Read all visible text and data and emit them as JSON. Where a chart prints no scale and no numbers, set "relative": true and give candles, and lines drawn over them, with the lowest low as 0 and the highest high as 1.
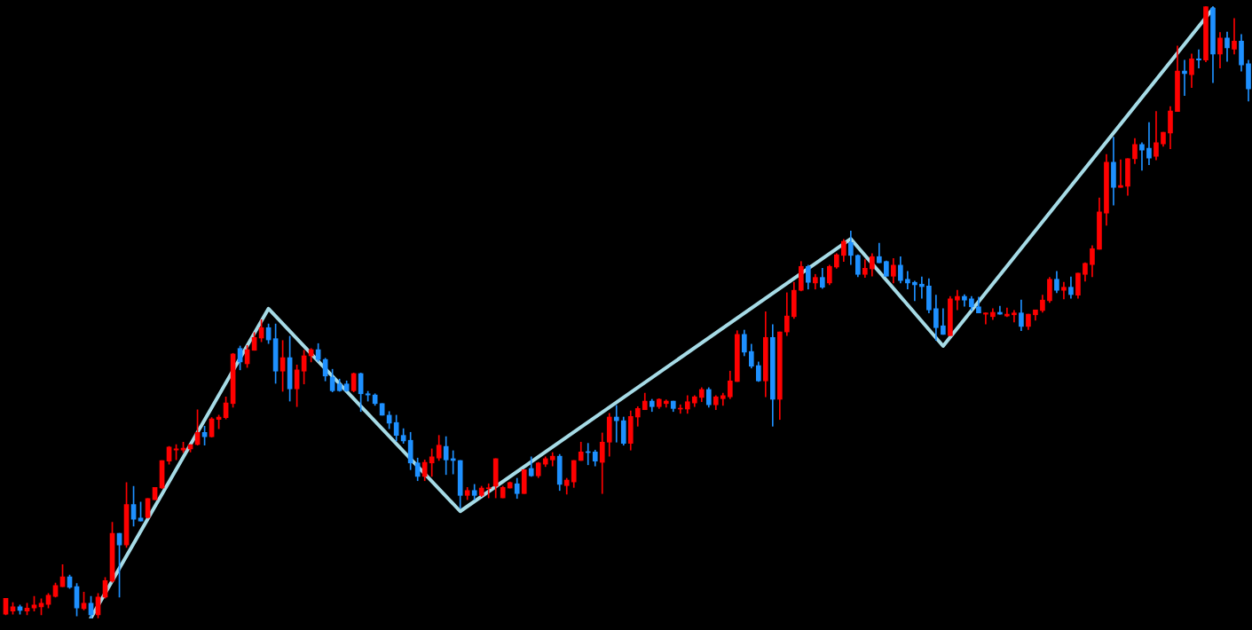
{
  "chart_data": {
    "type": "candlestick",
    "relative": true,
    "categories": [
      null,
      null,
      null,
      null,
      null,
      null,
      null,
      null,
      null,
      null,
      null,
      null,
      null,
      null,
      null,
      null,
      null,
      null,
      null,
      null,
      null,
      null,
      null,
      null,
      null,
      null,
      null,
      null,
      null,
      null,
      null,
      null,
      null,
      null,
      null,
      null,
      null,
      null,
      null,
      null,
      null,
      null,
      null,
      null,
      null,
      null,
      null,
      null,
      null,
      null,
      null,
      null,
      null,
      null,
      null,
      null,
      null,
      null,
      null,
      null,
      null,
      null,
      null,
      null,
      null,
      null,
      null,
      null,
      null,
      null,
      null,
      null,
      null,
      null,
      null,
      null,
      null,
      null,
      null,
      null,
      null,
      null,
      null,
      null,
      null,
      null,
      null,
      null,
      null,
      null,
      null,
      null,
      null,
      null,
      null,
      null,
      null,
      null,
      null,
      null,
      null,
      null,
      null,
      null,
      null,
      null,
      null,
      null,
      null,
      null,
      null,
      null,
      null,
      null,
      null,
      null,
      null,
      null,
      null,
      null,
      null,
      null,
      null,
      null,
      null,
      null,
      null,
      null,
      null,
      null,
      null,
      null,
      null,
      null,
      null,
      null,
      null,
      null,
      null,
      null,
      null,
      null,
      null,
      null,
      null,
      null,
      null,
      null,
      null,
      null,
      null,
      null,
      null,
      null,
      null,
      null,
      null,
      null,
      null,
      null,
      null,
      null,
      null,
      null,
      null,
      null,
      null,
      null,
      null,
      null,
      null,
      null,
      null,
      null,
      null,
      null
    ],
    "ohlc": [
      [
        0.007,
        0.033,
        0.006,
        0.033
      ],
      [
        0.012,
        0.026,
        0.007,
        0.019
      ],
      [
        0.019,
        0.022,
        0.007,
        0.013
      ],
      [
        0.012,
        0.025,
        0.006,
        0.017
      ],
      [
        0.017,
        0.036,
        0.012,
        0.022
      ],
      [
        0.019,
        0.032,
        0.006,
        0.025
      ],
      [
        0.023,
        0.041,
        0.017,
        0.038
      ],
      [
        0.036,
        0.058,
        0.035,
        0.054
      ],
      [
        0.052,
        0.088,
        0.052,
        0.068
      ],
      [
        0.068,
        0.071,
        0.049,
        0.051
      ],
      [
        0.052,
        0.057,
        0.004,
        0.017
      ],
      [
        0.016,
        0.043,
        0.014,
        0.025
      ],
      [
        0.025,
        0.036,
        0,
        0.006
      ],
      [
        0.006,
        0.041,
        0.001,
        0.035
      ],
      [
        0.035,
        0.067,
        0.033,
        0.062
      ],
      [
        0.061,
        0.157,
        0.059,
        0.139
      ],
      [
        0.139,
        0.139,
        0.035,
        0.12
      ],
      [
        0.12,
        0.222,
        0.116,
        0.186
      ],
      [
        0.186,
        0.216,
        0.151,
        0.162
      ],
      [
        0.164,
        0.19,
        0.159,
        0.159
      ],
      [
        0.165,
        0.196,
        0.164,
        0.196
      ],
      [
        0.194,
        0.214,
        0.194,
        0.214
      ],
      [
        0.213,
        0.258,
        0.212,
        0.258
      ],
      [
        0.257,
        0.281,
        0.252,
        0.28
      ],
      [
        0.275,
        0.284,
        0.259,
        0.277
      ],
      [
        0.275,
        0.288,
        0.271,
        0.278
      ],
      [
        0.277,
        0.284,
        0.272,
        0.284
      ],
      [
        0.284,
        0.341,
        0.283,
        0.304
      ],
      [
        0.304,
        0.314,
        0.283,
        0.297
      ],
      [
        0.297,
        0.328,
        0.296,
        0.326
      ],
      [
        0.325,
        0.332,
        0.31,
        0.329
      ],
      [
        0.328,
        0.362,
        0.326,
        0.352
      ],
      [
        0.351,
        0.433,
        0.345,
        0.432
      ],
      [
        0.441,
        0.445,
        0.406,
        0.419
      ],
      [
        0.416,
        0.446,
        0.41,
        0.439
      ],
      [
        0.438,
        0.467,
        0.438,
        0.459
      ],
      [
        0.458,
        0.488,
        0.452,
        0.475
      ],
      [
        0.475,
        0.481,
        0.449,
        0.455
      ],
      [
        0.457,
        0.481,
        0.384,
        0.404
      ],
      [
        0.404,
        0.454,
        0.371,
        0.426
      ],
      [
        0.426,
        0.461,
        0.355,
        0.375
      ],
      [
        0.375,
        0.414,
        0.346,
        0.406
      ],
      [
        0.404,
        0.438,
        0.383,
        0.429
      ],
      [
        0.429,
        0.441,
        0.419,
        0.439
      ],
      [
        0.439,
        0.449,
        0.42,
        0.423
      ],
      [
        0.423,
        0.425,
        0.388,
        0.396
      ],
      [
        0.394,
        0.407,
        0.37,
        0.372
      ],
      [
        0.383,
        0.391,
        0.371,
        0.372
      ],
      [
        0.383,
        0.388,
        0.371,
        0.372
      ],
      [
        0.372,
        0.401,
        0.37,
        0.4
      ],
      [
        0.4,
        0.401,
        0.338,
        0.367
      ],
      [
        0.367,
        0.371,
        0.355,
        0.365
      ],
      [
        0.365,
        0.367,
        0.348,
        0.351
      ],
      [
        0.351,
        0.351,
        0.332,
        0.332
      ],
      [
        0.332,
        0.338,
        0.31,
        0.319
      ],
      [
        0.32,
        0.332,
        0.29,
        0.299
      ],
      [
        0.299,
        0.31,
        0.286,
        0.29
      ],
      [
        0.291,
        0.304,
        0.243,
        0.254
      ],
      [
        0.254,
        0.262,
        0.225,
        0.232
      ],
      [
        0.232,
        0.259,
        0.225,
        0.255
      ],
      [
        0.254,
        0.277,
        0.232,
        0.264
      ],
      [
        0.262,
        0.299,
        0.258,
        0.283
      ],
      [
        0.281,
        0.297,
        0.235,
        0.259
      ],
      [
        0.261,
        0.274,
        0.236,
        0.258
      ],
      [
        0.258,
        0.258,
        0.18,
        0.201
      ],
      [
        0.201,
        0.214,
        0.194,
        0.209
      ],
      [
        0.209,
        0.219,
        0.194,
        0.201
      ],
      [
        0.201,
        0.216,
        0.199,
        0.213
      ],
      [
        0.212,
        0.22,
        0.197,
        0.213
      ],
      [
        0.216,
        0.261,
        0.197,
        0.261
      ],
      [
        0.197,
        0.216,
        0.197,
        0.214
      ],
      [
        0.213,
        0.223,
        0.213,
        0.222
      ],
      [
        0.22,
        0.229,
        0.196,
        0.204
      ],
      [
        0.204,
        0.243,
        0.204,
        0.243
      ],
      [
        0.245,
        0.264,
        0.232,
        0.233
      ],
      [
        0.233,
        0.255,
        0.23,
        0.254
      ],
      [
        0.252,
        0.264,
        0.248,
        0.261
      ],
      [
        0.259,
        0.271,
        0.249,
        0.265
      ],
      [
        0.265,
        0.268,
        0.209,
        0.219
      ],
      [
        0.217,
        0.229,
        0.203,
        0.226
      ],
      [
        0.223,
        0.258,
        0.214,
        0.258
      ],
      [
        0.258,
        0.288,
        0.258,
        0.272
      ],
      [
        0.272,
        0.286,
        0.251,
        0.271
      ],
      [
        0.272,
        0.275,
        0.249,
        0.257
      ],
      [
        0.255,
        0.303,
        0.204,
        0.288
      ],
      [
        0.288,
        0.335,
        0.265,
        0.329
      ],
      [
        0.329,
        0.348,
        0.288,
        0.323
      ],
      [
        0.323,
        0.329,
        0.283,
        0.286
      ],
      [
        0.286,
        0.339,
        0.275,
        0.33
      ],
      [
        0.329,
        0.346,
        0.314,
        0.343
      ],
      [
        0.341,
        0.368,
        0.341,
        0.355
      ],
      [
        0.355,
        0.358,
        0.338,
        0.346
      ],
      [
        0.346,
        0.359,
        0.343,
        0.358
      ],
      [
        0.351,
        0.357,
        0.345,
        0.355
      ],
      [
        0.355,
        0.355,
        0.338,
        0.343
      ],
      [
        0.342,
        0.349,
        0.335,
        0.343
      ],
      [
        0.342,
        0.364,
        0.335,
        0.354
      ],
      [
        0.352,
        0.364,
        0.346,
        0.362
      ],
      [
        0.361,
        0.377,
        0.354,
        0.374
      ],
      [
        0.374,
        0.377,
        0.345,
        0.349
      ],
      [
        0.349,
        0.364,
        0.341,
        0.362
      ],
      [
        0.359,
        0.368,
        0.348,
        0.364
      ],
      [
        0.362,
        0.404,
        0.359,
        0.388
      ],
      [
        0.387,
        0.47,
        0.387,
        0.464
      ],
      [
        0.464,
        0.471,
        0.429,
        0.435
      ],
      [
        0.436,
        0.448,
        0.409,
        0.412
      ],
      [
        0.413,
        0.419,
        0.387,
        0.388
      ],
      [
        0.388,
        0.501,
        0.362,
        0.459
      ],
      [
        0.459,
        0.48,
        0.314,
        0.358
      ],
      [
        0.358,
        0.468,
        0.325,
        0.468
      ],
      [
        0.468,
        0.532,
        0.462,
        0.494
      ],
      [
        0.493,
        0.549,
        0.49,
        0.536
      ],
      [
        0.536,
        0.583,
        0.535,
        0.575
      ],
      [
        0.575,
        0.577,
        0.538,
        0.549
      ],
      [
        0.548,
        0.562,
        0.538,
        0.557
      ],
      [
        0.557,
        0.572,
        0.539,
        0.541
      ],
      [
        0.548,
        0.577,
        0.545,
        0.575
      ],
      [
        0.574,
        0.596,
        0.572,
        0.594
      ],
      [
        0.593,
        0.619,
        0.583,
        0.616
      ],
      [
        0.614,
        0.633,
        0.578,
        0.593
      ],
      [
        0.593,
        0.594,
        0.558,
        0.562
      ],
      [
        0.562,
        0.586,
        0.557,
        0.572
      ],
      [
        0.571,
        0.596,
        0.559,
        0.591
      ],
      [
        0.591,
        0.613,
        0.581,
        0.581
      ],
      [
        0.583,
        0.584,
        0.559,
        0.559
      ],
      [
        0.559,
        0.588,
        0.548,
        0.577
      ],
      [
        0.577,
        0.591,
        0.548,
        0.552
      ],
      [
        0.554,
        0.567,
        0.538,
        0.548
      ],
      [
        0.549,
        0.551,
        0.519,
        0.545
      ],
      [
        0.546,
        0.558,
        0.523,
        0.542
      ],
      [
        0.543,
        0.555,
        0.499,
        0.504
      ],
      [
        0.506,
        0.528,
        0.454,
        0.475
      ],
      [
        0.478,
        0.506,
        0.464,
        0.464
      ],
      [
        0.462,
        0.526,
        0.462,
        0.522
      ],
      [
        0.52,
        0.536,
        0.504,
        0.526
      ],
      [
        0.526,
        0.529,
        0.51,
        0.52
      ],
      [
        0.522,
        0.526,
        0.503,
        0.509
      ],
      [
        0.509,
        0.525,
        0.499,
        0.499
      ],
      [
        0.497,
        0.499,
        0.481,
        0.499
      ],
      [
        0.493,
        0.506,
        0.488,
        0.5
      ],
      [
        0.5,
        0.51,
        0.497,
        0.497
      ],
      [
        0.494,
        0.507,
        0.493,
        0.497
      ],
      [
        0.496,
        0.503,
        0.484,
        0.499
      ],
      [
        0.499,
        0.52,
        0.47,
        0.477
      ],
      [
        0.477,
        0.497,
        0.472,
        0.497
      ],
      [
        0.496,
        0.504,
        0.487,
        0.504
      ],
      [
        0.503,
        0.528,
        0.5,
        0.52
      ],
      [
        0.519,
        0.557,
        0.516,
        0.554
      ],
      [
        0.554,
        0.567,
        0.532,
        0.536
      ],
      [
        0.536,
        0.549,
        0.522,
        0.541
      ],
      [
        0.541,
        0.558,
        0.523,
        0.529
      ],
      [
        0.528,
        0.564,
        0.523,
        0.564
      ],
      [
        0.562,
        0.581,
        0.551,
        0.58
      ],
      [
        0.578,
        0.609,
        0.558,
        0.604
      ],
      [
        0.603,
        0.687,
        0.603,
        0.664
      ],
      [
        0.662,
        0.758,
        0.642,
        0.745
      ],
      [
        0.745,
        0.786,
        0.675,
        0.704
      ],
      [
        0.704,
        0.749,
        0.704,
        0.707
      ],
      [
        0.706,
        0.751,
        0.691,
        0.751
      ],
      [
        0.751,
        0.784,
        0.743,
        0.774
      ],
      [
        0.774,
        0.777,
        0.732,
        0.765
      ],
      [
        0.768,
        0.81,
        0.741,
        0.752
      ],
      [
        0.755,
        0.828,
        0.749,
        0.777
      ],
      [
        0.775,
        0.794,
        0.771,
        0.794
      ],
      [
        0.793,
        0.836,
        0.767,
        0.829
      ],
      [
        0.828,
        0.935,
        0.828,
        0.894
      ],
      [
        0.894,
        0.912,
        0.854,
        0.89
      ],
      [
        0.888,
        0.922,
        0.867,
        0.914
      ],
      [
        0.914,
        0.929,
        0.899,
        0.912
      ],
      [
        0.912,
        1,
        0.909,
        0.999
      ],
      [
        0.997,
        1,
        0.875,
        0.922
      ],
      [
        0.922,
        0.957,
        0.899,
        0.948
      ],
      [
        0.948,
        0.958,
        0.91,
        0.932
      ],
      [
        0.93,
        0.98,
        0.922,
        0.943
      ],
      [
        0.943,
        0.954,
        0.894,
        0.904
      ],
      [
        0.906,
        0.912,
        0.845,
        0.865
      ]
    ],
    "colors": [
      "#ff0000",
      "#ff0000",
      "#1e90ff",
      "#ff0000",
      "#ff0000",
      "#ff0000",
      "#ff0000",
      "#ff0000",
      "#ff0000",
      "#1e90ff",
      "#1e90ff",
      "#ff0000",
      "#1e90ff",
      "#ff0000",
      "#ff0000",
      "#ff0000",
      "#1e90ff",
      "#ff0000",
      "#1e90ff",
      "#1e90ff",
      "#ff0000",
      "#ff0000",
      "#ff0000",
      "#ff0000",
      "#ff0000",
      "#ff0000",
      "#ff0000",
      "#ff0000",
      "#1e90ff",
      "#ff0000",
      "#ff0000",
      "#ff0000",
      "#ff0000",
      "#1e90ff",
      "#ff0000",
      "#ff0000",
      "#ff0000",
      "#1e90ff",
      "#1e90ff",
      "#ff0000",
      "#1e90ff",
      "#ff0000",
      "#ff0000",
      "#ff0000",
      "#1e90ff",
      "#1e90ff",
      "#1e90ff",
      "#1e90ff",
      "#1e90ff",
      "#ff0000",
      "#1e90ff",
      "#1e90ff",
      "#1e90ff",
      "#1e90ff",
      "#1e90ff",
      "#1e90ff",
      "#1e90ff",
      "#1e90ff",
      "#1e90ff",
      "#ff0000",
      "#ff0000",
      "#ff0000",
      "#1e90ff",
      "#1e90ff",
      "#1e90ff",
      "#ff0000",
      "#1e90ff",
      "#ff0000",
      "#ff0000",
      "#ff0000",
      "#ff0000",
      "#ff0000",
      "#1e90ff",
      "#ff0000",
      "#1e90ff",
      "#ff0000",
      "#ff0000",
      "#ff0000",
      "#1e90ff",
      "#ff0000",
      "#ff0000",
      "#ff0000",
      "#1e90ff",
      "#1e90ff",
      "#ff0000",
      "#ff0000",
      "#1e90ff",
      "#1e90ff",
      "#ff0000",
      "#ff0000",
      "#ff0000",
      "#1e90ff",
      "#ff0000",
      "#ff0000",
      "#1e90ff",
      "#ff0000",
      "#ff0000",
      "#ff0000",
      "#ff0000",
      "#1e90ff",
      "#ff0000",
      "#ff0000",
      "#ff0000",
      "#ff0000",
      "#1e90ff",
      "#1e90ff",
      "#1e90ff",
      "#ff0000",
      "#1e90ff",
      "#ff0000",
      "#ff0000",
      "#ff0000",
      "#ff0000",
      "#1e90ff",
      "#ff0000",
      "#1e90ff",
      "#ff0000",
      "#ff0000",
      "#ff0000",
      "#1e90ff",
      "#1e90ff",
      "#ff0000",
      "#ff0000",
      "#1e90ff",
      "#1e90ff",
      "#ff0000",
      "#1e90ff",
      "#1e90ff",
      "#1e90ff",
      "#1e90ff",
      "#1e90ff",
      "#1e90ff",
      "#1e90ff",
      "#ff0000",
      "#ff0000",
      "#1e90ff",
      "#1e90ff",
      "#1e90ff",
      "#ff0000",
      "#ff0000",
      "#1e90ff",
      "#ff0000",
      "#ff0000",
      "#1e90ff",
      "#ff0000",
      "#ff0000",
      "#ff0000",
      "#ff0000",
      "#1e90ff",
      "#ff0000",
      "#1e90ff",
      "#ff0000",
      "#ff0000",
      "#ff0000",
      "#ff0000",
      "#ff0000",
      "#1e90ff",
      "#ff0000",
      "#ff0000",
      "#ff0000",
      "#1e90ff",
      "#1e90ff",
      "#ff0000",
      "#ff0000",
      "#ff0000",
      "#ff0000",
      "#1e90ff",
      "#ff0000",
      "#1e90ff",
      "#ff0000",
      "#1e90ff",
      "#ff0000",
      "#1e90ff",
      "#ff0000",
      "#1e90ff",
      "#1e90ff"
    ],
    "series": [
      {
        "type": "line",
        "color": "#a6dbe6",
        "values": [
          null,
          null,
          null,
          null,
          null,
          null,
          null,
          null,
          null,
          null,
          null,
          null,
          0.001,
          null,
          null,
          null,
          null,
          null,
          null,
          null,
          null,
          null,
          null,
          null,
          null,
          null,
          null,
          null,
          null,
          null,
          null,
          null,
          null,
          null,
          null,
          null,
          null,
          0.506,
          null,
          null,
          null,
          null,
          null,
          null,
          null,
          null,
          null,
          null,
          null,
          null,
          null,
          null,
          null,
          null,
          null,
          null,
          null,
          null,
          null,
          null,
          null,
          null,
          null,
          null,
          0.175,
          null,
          null,
          null,
          null,
          null,
          null,
          null,
          null,
          null,
          null,
          null,
          null,
          null,
          null,
          null,
          null,
          null,
          null,
          null,
          null,
          null,
          null,
          null,
          null,
          null,
          null,
          null,
          null,
          null,
          null,
          null,
          null,
          null,
          null,
          null,
          null,
          null,
          null,
          null,
          null,
          null,
          null,
          null,
          null,
          null,
          null,
          null,
          null,
          null,
          null,
          null,
          null,
          null,
          null,
          0.62,
          null,
          null,
          null,
          null,
          null,
          null,
          null,
          null,
          null,
          null,
          null,
          null,
          0.445,
          null,
          null,
          null,
          null,
          null,
          null,
          null,
          null,
          null,
          null,
          null,
          null,
          null,
          null,
          null,
          null,
          null,
          null,
          null,
          null,
          null,
          null,
          null,
          null,
          null,
          null,
          null,
          null,
          null,
          null,
          null,
          null,
          null,
          null,
          null,
          null,
          null,
          0.996,
          null,
          null,
          null,
          null,
          null
        ]
      }
    ]
  }
}
